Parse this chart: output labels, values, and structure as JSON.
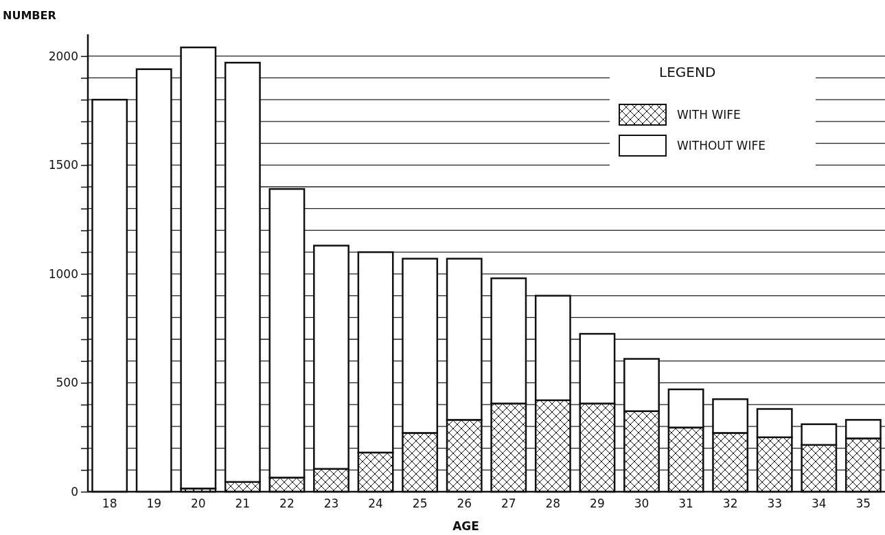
{
  "chart_data": {
    "type": "bar",
    "stacked": true,
    "xlabel": "AGE",
    "ylabel": "NUMBER",
    "legend_title": "LEGEND",
    "legend": "top right",
    "grid": "y",
    "categories": [
      "18",
      "19",
      "20",
      "21",
      "22",
      "23",
      "24",
      "25",
      "26",
      "27",
      "28",
      "29",
      "30",
      "31",
      "32",
      "33",
      "34",
      "35"
    ],
    "series": [
      {
        "name": "WITH WIFE",
        "color": "#111111",
        "values": [
          0,
          0,
          15,
          45,
          65,
          105,
          180,
          270,
          330,
          405,
          420,
          405,
          370,
          295,
          270,
          250,
          215,
          245
        ]
      },
      {
        "name": "WITHOUT WIFE",
        "color": "#ffffff",
        "values": [
          1800,
          1940,
          2025,
          1925,
          1325,
          1025,
          920,
          800,
          740,
          575,
          480,
          320,
          240,
          175,
          155,
          130,
          95,
          85
        ]
      }
    ],
    "ylim": [
      0,
      2100
    ],
    "yticks": [
      0,
      {
        "value": 100,
        "label": null
      },
      {
        "value": 200,
        "label": null
      },
      {
        "value": 300,
        "label": null
      },
      {
        "value": 400,
        "label": null
      },
      500,
      {
        "value": 600,
        "label": null
      },
      {
        "value": 700,
        "label": null
      },
      {
        "value": 800,
        "label": null
      },
      {
        "value": 900,
        "label": null
      },
      1000,
      {
        "value": 1100,
        "label": null
      },
      {
        "value": 1200,
        "label": null
      },
      {
        "value": 1300,
        "label": null
      },
      {
        "value": 1400,
        "label": null
      },
      1500,
      {
        "value": 1600,
        "label": null
      },
      {
        "value": 1700,
        "label": null
      },
      {
        "value": 1800,
        "label": null
      },
      {
        "value": 1900,
        "label": null
      },
      2000
    ]
  }
}
